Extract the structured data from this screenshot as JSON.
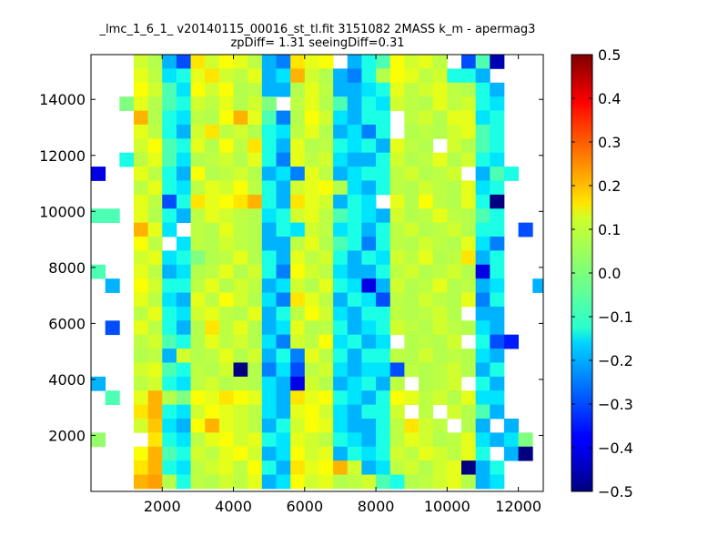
{
  "chart_data": {
    "type": "heatmap",
    "title": "_lmc_1_6_1_ v20140115_00016_st_tl.fit 3151082 2MASS k_m - apermag3",
    "subtitle": "zpDiff= 1.31 seeingDiff=0.31",
    "xlabel": "",
    "ylabel": "",
    "xlim": [
      0,
      12700
    ],
    "ylim": [
      0,
      15600
    ],
    "x_ticks": [
      2000,
      4000,
      6000,
      8000,
      10000,
      12000
    ],
    "y_ticks": [
      2000,
      4000,
      6000,
      8000,
      10000,
      12000,
      14000
    ],
    "grid": false,
    "colormap": "jet",
    "colorbar": {
      "range": [
        -0.5,
        0.5
      ],
      "ticks": [
        0.5,
        0.4,
        0.3,
        0.2,
        0.1,
        0.0,
        -0.1,
        -0.2,
        -0.3,
        -0.4,
        -0.5
      ],
      "tick_labels": [
        "0.5",
        "0.4",
        "0.3",
        "0.2",
        "0.1",
        "0.0",
        "−0.1",
        "−0.2",
        "−0.3",
        "−0.4",
        "−0.5"
      ]
    },
    "cell_size": [
      400,
      500
    ],
    "x_centers": [
      200,
      600,
      1000,
      1400,
      1800,
      2200,
      2600,
      3000,
      3400,
      3800,
      4200,
      4600,
      5000,
      5400,
      5800,
      6200,
      6600,
      7000,
      7400,
      7800,
      8200,
      8600,
      9000,
      9400,
      9800,
      10200,
      10600,
      11000,
      11400,
      11800,
      12200,
      12600
    ],
    "y_centers": [
      15350,
      14850,
      14350,
      13850,
      13350,
      12850,
      12350,
      11850,
      11350,
      10850,
      10350,
      9850,
      9350,
      8850,
      8350,
      7850,
      7350,
      6850,
      6350,
      5850,
      5350,
      4850,
      4350,
      3850,
      3350,
      2850,
      2350,
      1850,
      1350,
      850,
      350
    ],
    "values": [
      [
        null,
        null,
        null,
        0.08,
        0.05,
        -0.2,
        -0.3,
        0.15,
        0.08,
        0.12,
        0.1,
        0.06,
        -0.2,
        -0.25,
        0.15,
        0.1,
        0.12,
        null,
        -0.2,
        -0.1,
        -0.05,
        0.12,
        0.08,
        0.1,
        0.06,
        null,
        -0.3,
        -0.05,
        -0.45,
        null,
        null,
        null
      ],
      [
        null,
        null,
        null,
        0.1,
        0.06,
        -0.15,
        -0.1,
        0.1,
        0.15,
        0.08,
        0.06,
        0.1,
        -0.2,
        -0.15,
        0.2,
        0.08,
        0.05,
        -0.2,
        -0.25,
        -0.1,
        0.05,
        0.12,
        0.1,
        0.06,
        0.08,
        -0.1,
        -0.1,
        -0.2,
        null,
        null,
        null,
        null
      ],
      [
        null,
        null,
        null,
        0.12,
        0.08,
        -0.05,
        -0.15,
        0.12,
        0.08,
        0.12,
        0.05,
        0.06,
        -0.2,
        -0.2,
        0.05,
        0.1,
        0.06,
        -0.2,
        -0.2,
        -0.15,
        -0.1,
        0.1,
        0.06,
        0.08,
        0.1,
        0.06,
        0.05,
        -0.1,
        -0.2,
        null,
        null,
        null
      ],
      [
        null,
        null,
        0.0,
        0.1,
        0.05,
        -0.05,
        -0.1,
        0.08,
        0.06,
        0.1,
        0.05,
        0.08,
        0.0,
        null,
        0.06,
        0.1,
        0.05,
        -0.05,
        -0.2,
        -0.1,
        -0.15,
        0.08,
        0.06,
        0.05,
        0.1,
        0.06,
        0.08,
        -0.1,
        -0.15,
        null,
        null,
        null
      ],
      [
        null,
        null,
        null,
        0.2,
        0.05,
        -0.1,
        -0.15,
        0.06,
        0.05,
        0.12,
        0.2,
        0.1,
        -0.05,
        -0.25,
        0.05,
        0.12,
        0.08,
        -0.15,
        -0.2,
        -0.1,
        -0.1,
        null,
        0.06,
        0.08,
        0.05,
        0.1,
        0.1,
        -0.15,
        -0.1,
        null,
        null,
        null
      ],
      [
        null,
        null,
        null,
        0.1,
        0.06,
        -0.1,
        -0.2,
        0.08,
        0.15,
        0.06,
        0.08,
        0.05,
        -0.1,
        -0.15,
        0.06,
        0.1,
        0.05,
        -0.2,
        -0.15,
        -0.25,
        -0.1,
        null,
        0.05,
        0.06,
        0.05,
        0.08,
        0.1,
        -0.05,
        -0.1,
        null,
        null,
        null
      ],
      [
        null,
        null,
        null,
        0.08,
        0.12,
        -0.05,
        -0.1,
        0.1,
        0.05,
        0.12,
        0.06,
        0.15,
        -0.1,
        -0.2,
        0.1,
        0.05,
        0.06,
        -0.1,
        -0.15,
        -0.1,
        -0.2,
        0.1,
        0.06,
        0.05,
        null,
        0.08,
        0.05,
        -0.05,
        -0.1,
        null,
        null,
        null
      ],
      [
        null,
        null,
        -0.1,
        0.06,
        0.1,
        -0.05,
        -0.15,
        0.05,
        0.06,
        0.08,
        0.05,
        0.1,
        -0.1,
        -0.25,
        0.1,
        0.06,
        0.08,
        -0.15,
        -0.2,
        -0.2,
        -0.1,
        0.08,
        0.05,
        0.06,
        0.1,
        0.05,
        0.08,
        -0.1,
        -0.15,
        null,
        null,
        null
      ],
      [
        -0.4,
        null,
        null,
        0.1,
        0.06,
        -0.1,
        -0.2,
        0.12,
        0.05,
        0.06,
        0.08,
        0.05,
        -0.2,
        -0.15,
        -0.25,
        0.1,
        0.06,
        -0.2,
        -0.15,
        -0.1,
        -0.1,
        0.06,
        0.08,
        0.05,
        0.06,
        0.08,
        null,
        -0.2,
        -0.05,
        -0.1,
        null,
        null
      ],
      [
        null,
        null,
        null,
        0.06,
        0.1,
        -0.1,
        -0.15,
        0.06,
        0.1,
        0.08,
        0.12,
        0.06,
        -0.1,
        -0.2,
        0.08,
        0.1,
        0.12,
        0.05,
        -0.15,
        -0.2,
        -0.1,
        0.06,
        0.05,
        0.08,
        0.06,
        0.05,
        0.1,
        -0.15,
        -0.1,
        null,
        null,
        null
      ],
      [
        null,
        null,
        null,
        0.1,
        0.06,
        -0.3,
        -0.1,
        0.15,
        0.1,
        0.12,
        0.15,
        0.2,
        -0.1,
        -0.2,
        0.15,
        0.1,
        0.08,
        -0.2,
        -0.1,
        -0.15,
        null,
        0.1,
        0.05,
        0.12,
        0.06,
        0.05,
        0.1,
        -0.1,
        -0.5,
        null,
        null,
        null
      ],
      [
        -0.05,
        -0.05,
        null,
        0.1,
        0.05,
        -0.1,
        -0.2,
        0.06,
        0.1,
        0.08,
        0.06,
        0.05,
        -0.15,
        -0.1,
        0.08,
        0.1,
        0.06,
        -0.05,
        -0.1,
        -0.15,
        -0.2,
        0.08,
        0.05,
        0.06,
        0.1,
        0.06,
        0.05,
        -0.05,
        -0.1,
        null,
        null,
        null
      ],
      [
        null,
        null,
        null,
        0.2,
        0.1,
        -0.15,
        null,
        0.06,
        0.05,
        0.1,
        0.06,
        0.05,
        -0.2,
        -0.1,
        -0.15,
        0.08,
        0.06,
        -0.15,
        -0.1,
        -0.2,
        -0.1,
        0.06,
        0.08,
        0.05,
        0.06,
        0.08,
        0.05,
        -0.1,
        -0.1,
        null,
        -0.3,
        null
      ],
      [
        null,
        null,
        null,
        0.12,
        0.06,
        null,
        -0.15,
        0.06,
        0.05,
        0.08,
        0.06,
        0.05,
        -0.2,
        -0.2,
        0.06,
        0.1,
        0.05,
        -0.05,
        -0.1,
        -0.25,
        -0.1,
        0.06,
        0.05,
        0.08,
        0.06,
        0.05,
        0.1,
        -0.15,
        -0.25,
        null,
        null,
        null
      ],
      [
        null,
        null,
        null,
        0.08,
        0.1,
        -0.15,
        -0.1,
        0.0,
        0.05,
        0.06,
        0.1,
        0.05,
        -0.1,
        -0.2,
        0.1,
        0.06,
        0.08,
        -0.1,
        -0.2,
        -0.1,
        -0.15,
        0.08,
        0.06,
        0.1,
        0.05,
        0.06,
        0.15,
        -0.2,
        -0.1,
        null,
        null,
        null
      ],
      [
        -0.05,
        null,
        null,
        0.1,
        0.06,
        -0.2,
        -0.15,
        0.05,
        0.06,
        0.1,
        0.05,
        0.08,
        -0.1,
        -0.25,
        0.12,
        0.08,
        0.06,
        -0.15,
        -0.2,
        -0.2,
        -0.1,
        0.06,
        0.08,
        0.05,
        0.06,
        0.08,
        0.05,
        -0.4,
        -0.1,
        null,
        null,
        null
      ],
      [
        null,
        -0.2,
        null,
        0.12,
        0.08,
        -0.1,
        -0.1,
        0.06,
        0.1,
        0.05,
        0.08,
        0.06,
        -0.2,
        -0.15,
        0.08,
        0.05,
        0.1,
        -0.1,
        -0.15,
        -0.4,
        -0.2,
        0.08,
        0.05,
        0.06,
        0.1,
        0.05,
        0.06,
        -0.2,
        -0.15,
        null,
        null,
        -0.2
      ],
      [
        null,
        null,
        null,
        0.1,
        0.06,
        -0.15,
        -0.2,
        0.1,
        0.06,
        0.12,
        0.08,
        0.05,
        -0.15,
        -0.25,
        0.15,
        0.1,
        0.06,
        -0.2,
        -0.1,
        -0.15,
        -0.3,
        0.06,
        0.05,
        0.08,
        0.06,
        0.05,
        0.1,
        -0.25,
        -0.1,
        null,
        null,
        null
      ],
      [
        null,
        null,
        null,
        0.06,
        0.1,
        -0.1,
        -0.15,
        0.08,
        0.1,
        0.06,
        0.05,
        0.1,
        -0.2,
        -0.1,
        0.06,
        0.12,
        0.08,
        -0.15,
        -0.2,
        -0.1,
        -0.1,
        0.06,
        0.05,
        0.06,
        0.08,
        0.05,
        null,
        -0.2,
        -0.2,
        null,
        null,
        null
      ],
      [
        null,
        -0.3,
        null,
        0.1,
        0.06,
        -0.1,
        -0.2,
        0.05,
        0.15,
        0.06,
        0.1,
        0.05,
        -0.2,
        -0.15,
        0.1,
        0.05,
        0.06,
        -0.1,
        -0.2,
        -0.15,
        -0.1,
        0.08,
        0.06,
        0.05,
        0.08,
        0.06,
        0.05,
        -0.15,
        -0.2,
        null,
        null,
        null
      ],
      [
        null,
        null,
        null,
        0.06,
        0.08,
        -0.05,
        -0.1,
        0.05,
        0.1,
        0.06,
        0.08,
        0.05,
        -0.15,
        -0.25,
        0.08,
        0.06,
        0.12,
        -0.15,
        -0.1,
        -0.2,
        -0.15,
        null,
        0.05,
        0.06,
        0.05,
        0.08,
        null,
        -0.1,
        -0.3,
        -0.35,
        null,
        null
      ],
      [
        null,
        null,
        null,
        0.05,
        0.06,
        -0.2,
        0.08,
        0.05,
        0.06,
        0.1,
        0.05,
        0.08,
        -0.2,
        -0.1,
        -0.25,
        0.1,
        0.06,
        -0.1,
        -0.2,
        -0.1,
        -0.1,
        0.06,
        0.05,
        0.08,
        0.05,
        0.06,
        0.05,
        -0.15,
        -0.2,
        null,
        null,
        null
      ],
      [
        null,
        null,
        null,
        0.08,
        0.1,
        -0.05,
        -0.1,
        0.06,
        0.05,
        0.08,
        -0.5,
        0.05,
        -0.25,
        -0.15,
        -0.3,
        0.06,
        0.08,
        -0.15,
        -0.2,
        -0.15,
        -0.15,
        -0.3,
        0.06,
        0.05,
        0.06,
        0.08,
        0.05,
        -0.2,
        -0.1,
        null,
        null,
        null
      ],
      [
        -0.2,
        null,
        null,
        0.06,
        0.08,
        -0.1,
        -0.15,
        0.06,
        0.08,
        0.05,
        0.06,
        0.05,
        -0.15,
        -0.2,
        -0.4,
        0.08,
        0.05,
        -0.2,
        -0.15,
        -0.1,
        -0.2,
        0.06,
        null,
        0.05,
        0.06,
        0.08,
        null,
        -0.1,
        -0.2,
        null,
        null,
        null
      ],
      [
        null,
        -0.05,
        null,
        0.1,
        0.2,
        0.05,
        0.0,
        0.12,
        0.1,
        0.15,
        0.12,
        0.1,
        -0.15,
        -0.2,
        0.15,
        0.1,
        0.12,
        -0.1,
        -0.15,
        -0.2,
        -0.1,
        0.12,
        0.1,
        0.06,
        0.08,
        0.05,
        0.1,
        -0.15,
        -0.15,
        null,
        null,
        null
      ],
      [
        null,
        null,
        null,
        0.15,
        0.2,
        -0.1,
        -0.15,
        0.08,
        0.12,
        0.1,
        0.08,
        0.06,
        -0.15,
        -0.2,
        0.1,
        0.12,
        0.08,
        -0.15,
        -0.2,
        -0.1,
        -0.1,
        0.08,
        null,
        0.06,
        null,
        0.08,
        0.05,
        -0.05,
        -0.2,
        null,
        null,
        null
      ],
      [
        null,
        null,
        null,
        0.08,
        0.18,
        -0.15,
        -0.2,
        0.12,
        0.2,
        0.1,
        0.08,
        0.06,
        -0.2,
        -0.1,
        0.08,
        0.12,
        0.1,
        -0.15,
        -0.2,
        -0.2,
        -0.1,
        0.06,
        0.15,
        0.08,
        0.06,
        null,
        0.05,
        -0.2,
        null,
        -0.2,
        null,
        null
      ],
      [
        0.02,
        null,
        null,
        null,
        0.15,
        -0.1,
        -0.15,
        0.06,
        0.1,
        0.12,
        0.08,
        0.1,
        -0.1,
        -0.15,
        0.1,
        0.08,
        0.06,
        -0.1,
        -0.15,
        -0.2,
        -0.1,
        0.06,
        0.1,
        0.08,
        0.05,
        0.06,
        0.1,
        -0.15,
        -0.2,
        -0.15,
        0.0,
        null
      ],
      [
        null,
        null,
        null,
        0.12,
        0.2,
        -0.05,
        -0.1,
        0.08,
        0.06,
        0.1,
        0.12,
        0.08,
        -0.2,
        -0.15,
        0.12,
        0.08,
        0.1,
        -0.2,
        -0.1,
        -0.15,
        -0.1,
        0.08,
        0.06,
        0.1,
        0.08,
        0.06,
        0.1,
        -0.1,
        null,
        -0.2,
        -0.5,
        null
      ],
      [
        null,
        null,
        null,
        0.15,
        0.2,
        -0.1,
        -0.15,
        0.06,
        0.08,
        0.1,
        0.06,
        0.12,
        -0.1,
        -0.2,
        0.15,
        0.1,
        0.12,
        0.2,
        0.08,
        -0.2,
        -0.15,
        0.06,
        0.08,
        0.05,
        0.08,
        0.1,
        -0.5,
        -0.2,
        -0.1,
        null,
        null,
        null
      ],
      [
        null,
        null,
        null,
        0.2,
        0.22,
        0.05,
        -0.1,
        0.06,
        0.05,
        0.08,
        0.06,
        0.1,
        -0.2,
        -0.15,
        0.12,
        0.08,
        0.1,
        0.05,
        0.06,
        0.08,
        -0.05,
        -0.1,
        0.05,
        0.06,
        0.08,
        0.1,
        0.05,
        -0.2,
        -0.15,
        null,
        null,
        null
      ]
    ]
  }
}
